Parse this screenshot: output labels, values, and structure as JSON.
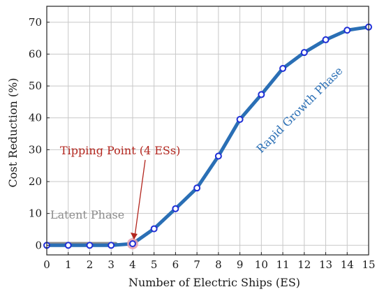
{
  "chart_data": {
    "type": "line",
    "title": "",
    "xlabel": "Number of Electric Ships (ES)",
    "ylabel": "Cost Reduction (%)",
    "xlim": [
      0,
      15
    ],
    "ylim": [
      -3,
      75
    ],
    "x_ticks": [
      0,
      1,
      2,
      3,
      4,
      5,
      6,
      7,
      8,
      9,
      10,
      11,
      12,
      13,
      14,
      15
    ],
    "y_ticks": [
      0,
      10,
      20,
      30,
      40,
      50,
      60,
      70
    ],
    "grid": true,
    "legend": "none",
    "series": [
      {
        "x": [
          0,
          1,
          2,
          3,
          4,
          5,
          6,
          7,
          8,
          9,
          10,
          11,
          12,
          13,
          14,
          15
        ],
        "values": [
          0,
          0,
          0,
          0,
          0.5,
          5.2,
          11.5,
          18,
          28,
          39.5,
          47.3,
          55.5,
          60.5,
          64.5,
          67.5,
          68.5
        ],
        "color": "#2a6fb5"
      }
    ],
    "annotations": {
      "tipping_point": {
        "text": "Tipping Point (4 ESs)",
        "x": 4,
        "y": 0.5,
        "color": "#b3261e"
      },
      "latent_phase": {
        "text": "Latent Phase",
        "x_start": 0,
        "x_end": 3.2,
        "color": "#8c8c8c"
      },
      "rapid_growth": {
        "text": "Rapid Growth Phase",
        "color": "#2a6fb5"
      }
    }
  }
}
